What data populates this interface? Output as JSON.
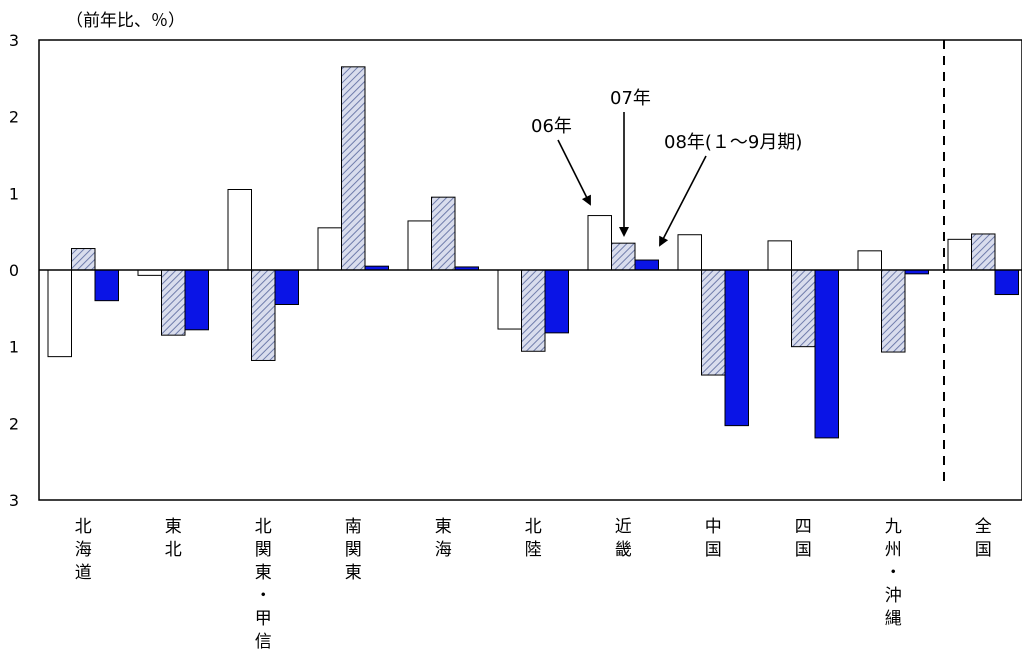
{
  "chart_data": {
    "type": "bar",
    "unit_label": "（前年比、％）",
    "y_ticks": [
      "3",
      "2",
      "1",
      "0",
      "1",
      "2",
      "3"
    ],
    "ylim": [
      -3,
      3
    ],
    "categories": [
      "北海道",
      "東北",
      "北関東・甲信",
      "南関東",
      "東海",
      "北陸",
      "近畿",
      "中国",
      "四国",
      "九州・沖縄",
      "全国"
    ],
    "series": [
      {
        "name": "06年",
        "style": "white",
        "color": "#ffffff",
        "values": [
          -1.13,
          -0.07,
          1.05,
          0.55,
          0.64,
          -0.77,
          0.71,
          0.46,
          0.38,
          0.25,
          0.4
        ]
      },
      {
        "name": "07年",
        "style": "hatched",
        "color": "#b8bfd9",
        "values": [
          0.28,
          -0.85,
          -1.18,
          2.65,
          0.95,
          -1.06,
          0.35,
          -1.37,
          -1.0,
          -1.07,
          0.47
        ]
      },
      {
        "name": "08年(１～9月期)",
        "style": "solid",
        "color": "#0a14e6",
        "values": [
          -0.4,
          -0.78,
          -0.45,
          0.05,
          0.04,
          -0.82,
          0.13,
          -2.03,
          -2.19,
          -0.05,
          -0.32
        ]
      }
    ],
    "annotations": [
      "06年",
      "07年",
      "08年(１～9月期)"
    ],
    "divider": "dashed line before 全国",
    "grid": false
  }
}
